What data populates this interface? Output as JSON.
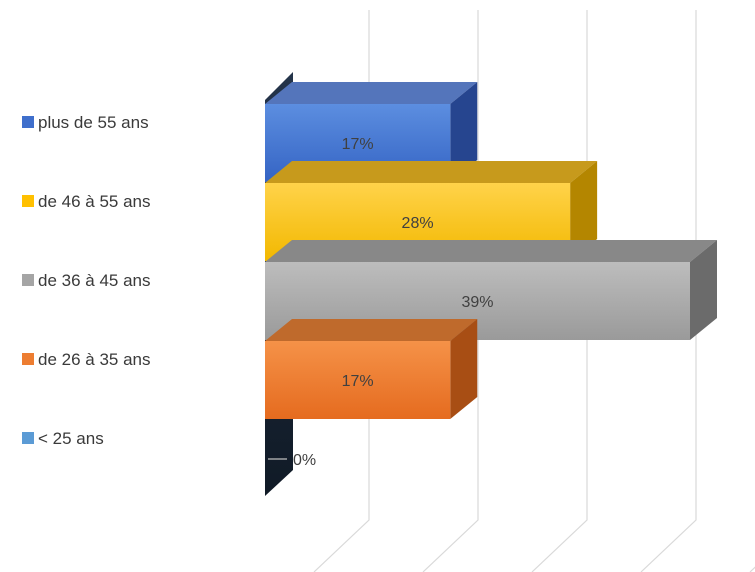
{
  "chart_data": {
    "type": "bar",
    "orientation": "horizontal",
    "three_d": true,
    "title": "",
    "xlabel": "",
    "ylabel": "",
    "xlim": [
      0,
      0.45
    ],
    "grid": true,
    "data_labels": true,
    "legend_position": "left",
    "categories": [
      "plus de 55 ans",
      "de 46 à 55 ans",
      "de 36 à 45 ans",
      "de 26 à 35 ans",
      "< 25 ans"
    ],
    "values": [
      0.17,
      0.28,
      0.39,
      0.17,
      0.0
    ],
    "value_labels": [
      "17%",
      "28%",
      "39%",
      "17%",
      "0%"
    ],
    "colors": [
      "#3f6fcc",
      "#ffc000",
      "#a5a5a5",
      "#ed7d31",
      "#5b9bd5"
    ]
  }
}
